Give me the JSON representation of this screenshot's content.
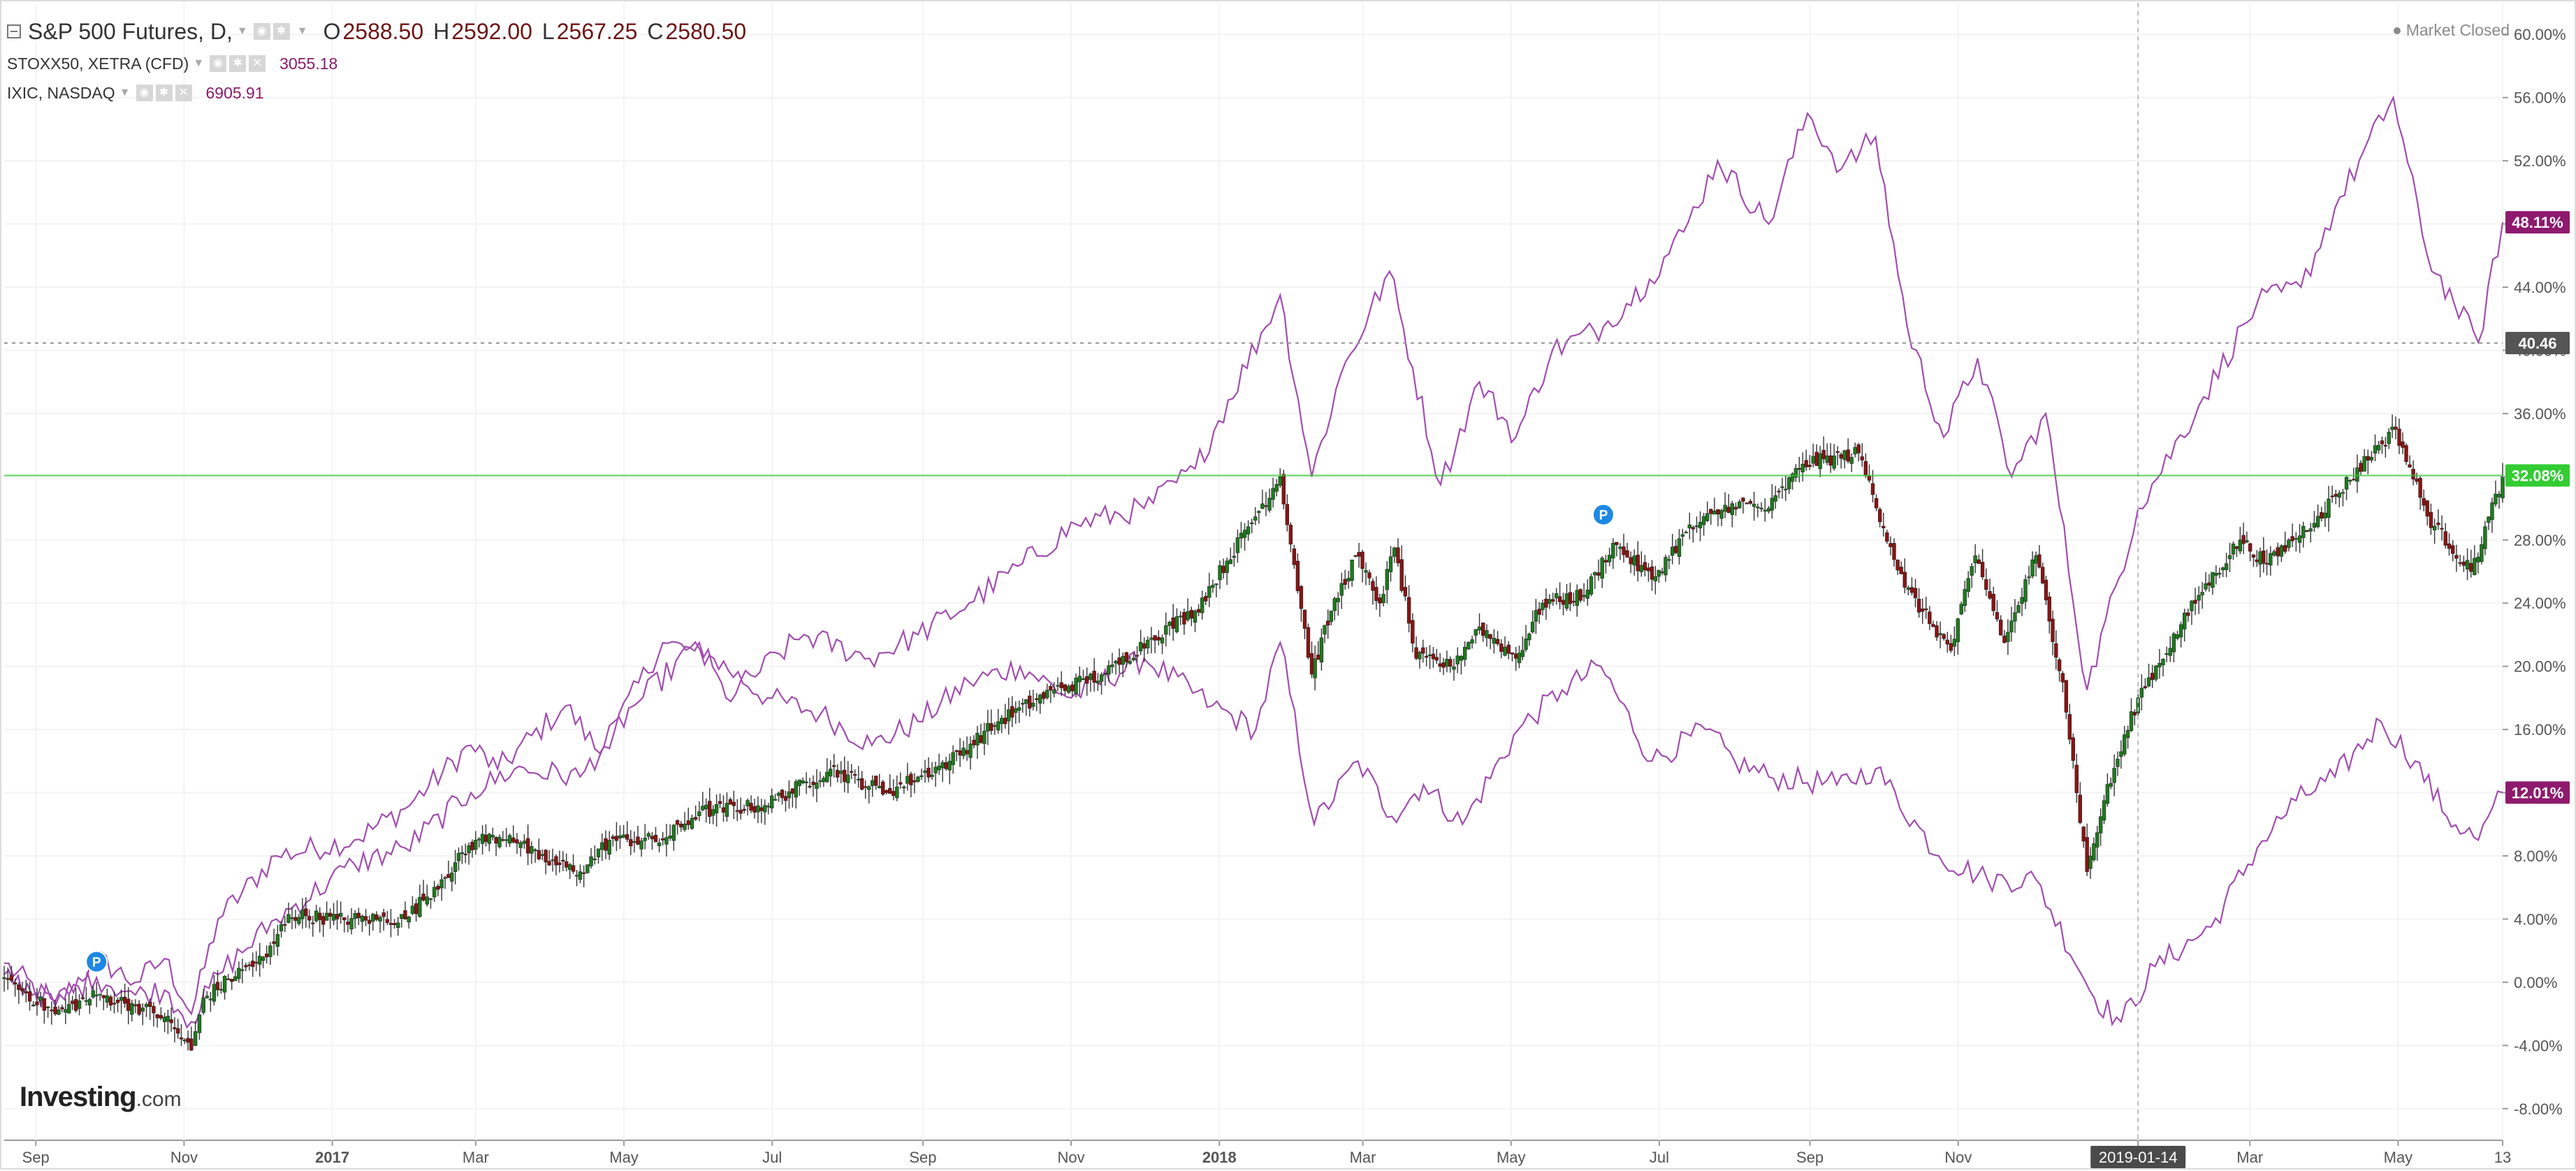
{
  "header": {
    "main_title": "S&P 500 Futures, D,",
    "ohlc": [
      {
        "key": "O",
        "value": "2588.50"
      },
      {
        "key": "H",
        "value": "2592.00"
      },
      {
        "key": "L",
        "value": "2567.25"
      },
      {
        "key": "C",
        "value": "2580.50"
      }
    ],
    "overlays": [
      {
        "title": "STOXX50, XETRA (CFD)",
        "value": "3055.18"
      },
      {
        "title": "IXIC, NASDAQ",
        "value": "6905.91"
      }
    ],
    "market_status": "Market Closed",
    "logo": {
      "text": "Investing",
      "suffix": ".com"
    }
  },
  "colors": {
    "up_candle": "#1e7b1e",
    "down_candle": "#8b1414",
    "line_series": "#a24db0",
    "badge_purple": "#8e1a6e",
    "badge_green": "#33cc33",
    "badge_gray": "#555555",
    "marker": "#1e88e5"
  },
  "chart_data": {
    "type": "line",
    "y_scale": "percent",
    "ylim": [
      -10,
      62
    ],
    "y_ticks": [
      "60.00%",
      "56.00%",
      "52.00%",
      "48.00%",
      "44.00%",
      "40.00%",
      "36.00%",
      "32.00%",
      "28.00%",
      "24.00%",
      "20.00%",
      "16.00%",
      "12.00%",
      "8.00%",
      "4.00%",
      "0.00%",
      "-4.00%",
      "-8.00%"
    ],
    "x_ticks": [
      "Sep",
      "Nov",
      "2017",
      "Mar",
      "May",
      "Jul",
      "Sep",
      "Nov",
      "2018",
      "Mar",
      "May",
      "Jul",
      "Sep",
      "Nov",
      "2019-01-14",
      "Mar",
      "May",
      "13"
    ],
    "x_tick_dates": [
      "2016-09-01",
      "2016-11-01",
      "2017-01-01",
      "2017-03-01",
      "2017-05-01",
      "2017-07-01",
      "2017-09-01",
      "2017-11-01",
      "2018-01-01",
      "2018-03-01",
      "2018-05-01",
      "2018-07-01",
      "2018-09-01",
      "2018-11-01",
      "2019-01-14",
      "2019-03-01",
      "2019-05-01",
      "2019-06-13"
    ],
    "x_range": [
      "2016-08-19",
      "2019-06-13"
    ],
    "crosshair_x": "2019-01-14",
    "price_badges": [
      {
        "label": "48.11%",
        "y": 48.11,
        "style": "purple"
      },
      {
        "label": "40.46",
        "y": 40.46,
        "style": "gray"
      },
      {
        "label": "32.08%",
        "y": 32.08,
        "style": "green"
      },
      {
        "label": "12.01%",
        "y": 12.01,
        "style": "purple"
      }
    ],
    "horizontal_lines": [
      {
        "y": 40.46,
        "style": "dashed"
      },
      {
        "y": 32.08,
        "style": "solid-green"
      }
    ],
    "markers": [
      {
        "date": "2016-09-26",
        "y": 1.3,
        "label": "P"
      },
      {
        "date": "2018-06-08",
        "y": 29.6,
        "label": "P"
      }
    ],
    "series": [
      {
        "type": "candlestick",
        "points": [
          [
            "2016-08-19",
            0.3
          ],
          [
            "2016-09-09",
            -2.0
          ],
          [
            "2016-09-26",
            -0.8
          ],
          [
            "2016-10-12",
            -1.5
          ],
          [
            "2016-10-24",
            -2.2
          ],
          [
            "2016-11-04",
            -4.3
          ],
          [
            "2016-11-09",
            -1.0
          ],
          [
            "2016-11-25",
            0.8
          ],
          [
            "2016-12-05",
            1.6
          ],
          [
            "2016-12-14",
            4.3
          ],
          [
            "2017-01-03",
            4.0
          ],
          [
            "2017-01-31",
            4.0
          ],
          [
            "2017-02-15",
            6.5
          ],
          [
            "2017-03-01",
            9.0
          ],
          [
            "2017-03-15",
            9.3
          ],
          [
            "2017-03-27",
            7.8
          ],
          [
            "2017-04-13",
            7.0
          ],
          [
            "2017-04-25",
            9.0
          ],
          [
            "2017-05-17",
            9.0
          ],
          [
            "2017-06-01",
            10.8
          ],
          [
            "2017-06-28",
            11.2
          ],
          [
            "2017-07-25",
            13.5
          ],
          [
            "2017-08-17",
            12.0
          ],
          [
            "2017-09-12",
            14.0
          ],
          [
            "2017-10-02",
            16.5
          ],
          [
            "2017-10-25",
            18.5
          ],
          [
            "2017-11-15",
            19.5
          ],
          [
            "2017-12-04",
            21.8
          ],
          [
            "2017-12-22",
            23.5
          ],
          [
            "2018-01-26",
            32.0
          ],
          [
            "2018-02-08",
            19.5
          ],
          [
            "2018-02-16",
            23.5
          ],
          [
            "2018-02-26",
            27.0
          ],
          [
            "2018-03-08",
            24.0
          ],
          [
            "2018-03-14",
            27.5
          ],
          [
            "2018-03-23",
            20.5
          ],
          [
            "2018-04-06",
            20.0
          ],
          [
            "2018-04-18",
            22.5
          ],
          [
            "2018-05-03",
            20.5
          ],
          [
            "2018-05-14",
            24.0
          ],
          [
            "2018-05-31",
            24.5
          ],
          [
            "2018-06-12",
            27.8
          ],
          [
            "2018-06-28",
            25.5
          ],
          [
            "2018-07-12",
            28.5
          ],
          [
            "2018-07-31",
            30.3
          ],
          [
            "2018-08-15",
            30.0
          ],
          [
            "2018-08-29",
            32.8
          ],
          [
            "2018-09-21",
            33.5
          ],
          [
            "2018-10-10",
            25.0
          ],
          [
            "2018-10-29",
            21.0
          ],
          [
            "2018-11-08",
            27.0
          ],
          [
            "2018-11-20",
            21.5
          ],
          [
            "2018-12-03",
            27.0
          ],
          [
            "2018-12-14",
            19.0
          ],
          [
            "2018-12-24",
            7.0
          ],
          [
            "2018-12-31",
            11.5
          ],
          [
            "2019-01-14",
            18.0
          ],
          [
            "2019-02-08",
            24.5
          ],
          [
            "2019-02-25",
            28.0
          ],
          [
            "2019-03-08",
            26.5
          ],
          [
            "2019-03-29",
            29.5
          ],
          [
            "2019-04-23",
            34.0
          ],
          [
            "2019-04-30",
            35.0
          ],
          [
            "2019-05-13",
            29.5
          ],
          [
            "2019-05-31",
            26.0
          ],
          [
            "2019-06-13",
            32.0
          ]
        ]
      },
      {
        "type": "line",
        "points": [
          [
            "2016-08-19",
            1.2
          ],
          [
            "2016-09-09",
            -1.5
          ],
          [
            "2016-09-26",
            1.5
          ],
          [
            "2016-10-12",
            0.0
          ],
          [
            "2016-10-24",
            1.5
          ],
          [
            "2016-11-04",
            -2.0
          ],
          [
            "2016-11-15",
            4.0
          ],
          [
            "2016-12-09",
            8.0
          ],
          [
            "2017-01-10",
            9.0
          ],
          [
            "2017-01-31",
            11.0
          ],
          [
            "2017-02-27",
            15.0
          ],
          [
            "2017-03-10",
            13.5
          ],
          [
            "2017-04-07",
            17.5
          ],
          [
            "2017-04-21",
            14.5
          ],
          [
            "2017-05-17",
            21.5
          ],
          [
            "2017-06-07",
            20.5
          ],
          [
            "2017-06-29",
            18.0
          ],
          [
            "2017-07-21",
            17.0
          ],
          [
            "2017-08-11",
            15.0
          ],
          [
            "2017-08-30",
            16.5
          ],
          [
            "2017-09-20",
            19.0
          ],
          [
            "2017-10-11",
            20.0
          ],
          [
            "2017-11-01",
            18.0
          ],
          [
            "2017-12-01",
            20.5
          ],
          [
            "2017-12-29",
            17.5
          ],
          [
            "2018-01-16",
            16.0
          ],
          [
            "2018-01-26",
            21.5
          ],
          [
            "2018-02-09",
            10.0
          ],
          [
            "2018-02-27",
            14.0
          ],
          [
            "2018-03-13",
            10.5
          ],
          [
            "2018-03-26",
            12.5
          ],
          [
            "2018-04-11",
            10.0
          ],
          [
            "2018-05-04",
            16.0
          ],
          [
            "2018-05-22",
            18.5
          ],
          [
            "2018-06-07",
            20.0
          ],
          [
            "2018-06-28",
            14.0
          ],
          [
            "2018-07-20",
            16.0
          ],
          [
            "2018-08-01",
            14.0
          ],
          [
            "2018-08-15",
            13.0
          ],
          [
            "2018-09-12",
            12.5
          ],
          [
            "2018-09-28",
            13.5
          ],
          [
            "2018-10-24",
            8.0
          ],
          [
            "2018-11-13",
            6.5
          ],
          [
            "2018-12-03",
            6.5
          ],
          [
            "2018-12-27",
            -1.0
          ],
          [
            "2019-01-07",
            -2.5
          ],
          [
            "2019-01-21",
            1.0
          ],
          [
            "2019-02-13",
            3.5
          ],
          [
            "2019-03-04",
            8.5
          ],
          [
            "2019-03-20",
            11.5
          ],
          [
            "2019-04-05",
            13.0
          ],
          [
            "2019-04-24",
            16.5
          ],
          [
            "2019-05-08",
            14.0
          ],
          [
            "2019-05-21",
            10.5
          ],
          [
            "2019-06-03",
            9.0
          ],
          [
            "2019-06-13",
            12.01
          ]
        ]
      },
      {
        "type": "line",
        "points": [
          [
            "2016-08-19",
            0.5
          ],
          [
            "2016-09-09",
            -1.2
          ],
          [
            "2016-09-26",
            0.3
          ],
          [
            "2016-10-12",
            -0.8
          ],
          [
            "2016-10-24",
            -0.5
          ],
          [
            "2016-11-04",
            -2.5
          ],
          [
            "2016-11-15",
            0.5
          ],
          [
            "2016-12-09",
            4.0
          ],
          [
            "2017-01-10",
            7.5
          ],
          [
            "2017-01-31",
            8.5
          ],
          [
            "2017-02-27",
            12.0
          ],
          [
            "2017-03-17",
            13.5
          ],
          [
            "2017-04-13",
            13.0
          ],
          [
            "2017-05-05",
            17.5
          ],
          [
            "2017-06-01",
            21.5
          ],
          [
            "2017-06-12",
            18.0
          ],
          [
            "2017-07-14",
            22.0
          ],
          [
            "2017-08-10",
            20.5
          ],
          [
            "2017-08-30",
            22.0
          ],
          [
            "2017-09-20",
            24.0
          ],
          [
            "2017-10-12",
            26.5
          ],
          [
            "2017-11-03",
            29.0
          ],
          [
            "2017-12-01",
            30.0
          ],
          [
            "2017-12-22",
            32.5
          ],
          [
            "2018-01-26",
            43.5
          ],
          [
            "2018-02-08",
            32.0
          ],
          [
            "2018-02-20",
            38.5
          ],
          [
            "2018-03-12",
            45.0
          ],
          [
            "2018-04-02",
            31.5
          ],
          [
            "2018-04-18",
            38.0
          ],
          [
            "2018-05-03",
            34.5
          ],
          [
            "2018-05-18",
            40.0
          ],
          [
            "2018-06-08",
            41.5
          ],
          [
            "2018-06-27",
            44.5
          ],
          [
            "2018-07-11",
            47.5
          ],
          [
            "2018-07-25",
            52.0
          ],
          [
            "2018-08-15",
            48.0
          ],
          [
            "2018-08-31",
            55.0
          ],
          [
            "2018-09-14",
            51.5
          ],
          [
            "2018-09-28",
            53.5
          ],
          [
            "2018-10-11",
            41.5
          ],
          [
            "2018-10-26",
            34.5
          ],
          [
            "2018-11-09",
            39.5
          ],
          [
            "2018-11-23",
            32.0
          ],
          [
            "2018-12-07",
            36.0
          ],
          [
            "2018-12-24",
            18.5
          ],
          [
            "2019-01-14",
            30.0
          ],
          [
            "2019-02-08",
            36.5
          ],
          [
            "2019-03-04",
            43.0
          ],
          [
            "2019-03-22",
            44.0
          ],
          [
            "2019-04-05",
            49.0
          ],
          [
            "2019-04-29",
            56.0
          ],
          [
            "2019-05-13",
            46.0
          ],
          [
            "2019-05-24",
            43.0
          ],
          [
            "2019-06-03",
            40.5
          ],
          [
            "2019-06-13",
            48.11
          ]
        ]
      }
    ]
  }
}
